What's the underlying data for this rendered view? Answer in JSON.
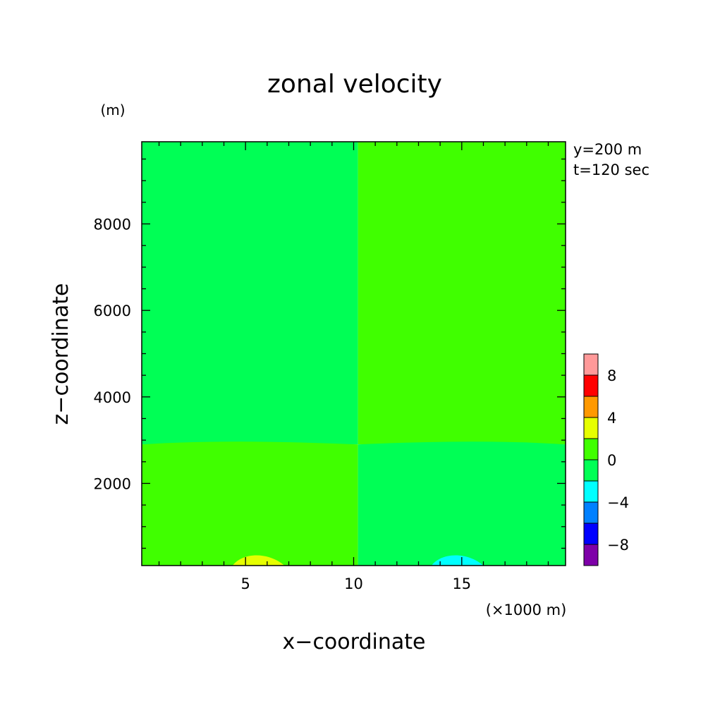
{
  "chart_data": {
    "type": "heatmap",
    "title": "zonal velocity",
    "xlabel": "x−coordinate",
    "ylabel": "z−coordinate",
    "x_unit": "(×1000 m)",
    "y_unit": "(m)",
    "annotations": [
      "y=200 m",
      "t=120 sec"
    ],
    "xlim": [
      0.2,
      19.8
    ],
    "ylim": [
      100,
      9900
    ],
    "x_ticks": [
      5,
      10,
      15
    ],
    "x_tick_labels": [
      "5",
      "10",
      "15"
    ],
    "y_ticks": [
      2000,
      4000,
      6000,
      8000
    ],
    "y_tick_labels": [
      "2000",
      "4000",
      "6000",
      "8000"
    ],
    "colorbar": {
      "levels": [
        -10,
        -8,
        -6,
        -4,
        -2,
        0,
        2,
        4,
        6,
        8,
        10
      ],
      "colors": [
        "#7e00a8",
        "#0000ff",
        "#0080ff",
        "#00ffff",
        "#00ff55",
        "#40ff00",
        "#e6ff00",
        "#ff9900",
        "#ff0000",
        "#ff9999"
      ],
      "tick_values": [
        -8,
        -4,
        0,
        4,
        8
      ],
      "tick_labels": [
        "−8",
        "−4",
        "0",
        "4",
        "8"
      ]
    },
    "regions": [
      {
        "name": "upper-left",
        "range": "-2 to 0",
        "color": "#00ff55"
      },
      {
        "name": "upper-right",
        "range": "0 to 2",
        "color": "#40ff00"
      },
      {
        "name": "lower-left",
        "range": "0 to 2",
        "color": "#40ff00"
      },
      {
        "name": "lower-right",
        "range": "-2 to 0",
        "color": "#00ff55"
      },
      {
        "name": "bottom-positive-blob",
        "range": "2 to 4",
        "color": "#e6ff00",
        "x_center": 5.6,
        "x_halfwidth": 1.2,
        "z_top": 350
      },
      {
        "name": "bottom-negative-blob",
        "range": "-4 to -2",
        "color": "#00ffff",
        "x_center": 14.8,
        "x_halfwidth": 1.2,
        "z_top": 350
      }
    ],
    "x_split": 10.2,
    "z_layer_boundary": 2900
  }
}
